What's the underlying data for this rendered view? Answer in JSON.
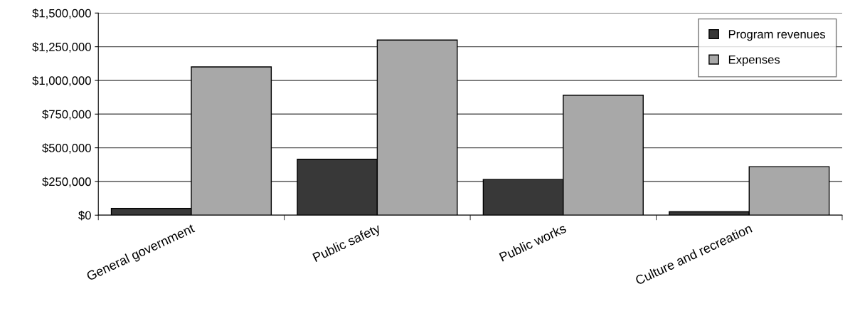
{
  "chart_data": {
    "type": "bar",
    "categories": [
      "General government",
      "Public safety",
      "Public works",
      "Culture and recreation"
    ],
    "series": [
      {
        "name": "Program revenues",
        "color": "#383838",
        "values": [
          50000,
          415000,
          265000,
          25000
        ]
      },
      {
        "name": "Expenses",
        "color": "#a8a8a8",
        "values": [
          1100000,
          1300000,
          890000,
          360000
        ]
      }
    ],
    "ylim": [
      0,
      1500000
    ],
    "yticks": [
      {
        "value": 0,
        "label": "$0"
      },
      {
        "value": 250000,
        "label": "$250,000"
      },
      {
        "value": 500000,
        "label": "$500,000"
      },
      {
        "value": 750000,
        "label": "$750,000"
      },
      {
        "value": 1000000,
        "label": "$1,000,000"
      },
      {
        "value": 1250000,
        "label": "$1,250,000"
      },
      {
        "value": 1500000,
        "label": "$1,500,000"
      }
    ],
    "grid": "y",
    "legend": "top right"
  }
}
